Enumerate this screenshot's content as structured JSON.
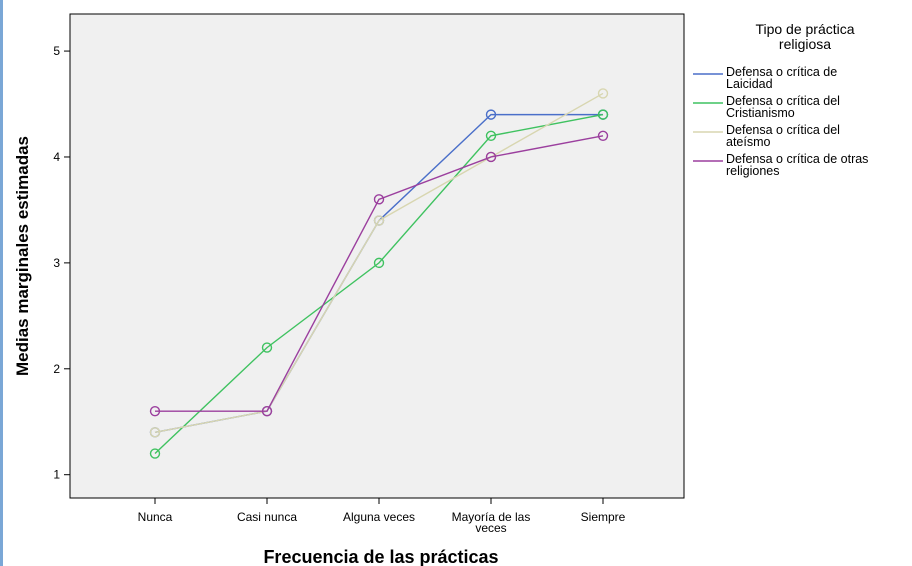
{
  "chart_data": {
    "type": "line",
    "xlabel": "Frecuencia de las prácticas",
    "ylabel": "Medias marginales estimadas",
    "categories": [
      [
        "Nunca"
      ],
      [
        "Casi nunca"
      ],
      [
        "Alguna veces"
      ],
      [
        "Mayoría de las",
        "veces"
      ],
      [
        "Siempre"
      ]
    ],
    "yticks": [
      1,
      2,
      3,
      4,
      5
    ],
    "ylim": [
      0.78,
      5.35
    ],
    "grid": false,
    "legend": {
      "title": [
        "Tipo de práctica",
        "religiosa"
      ],
      "placement": "right"
    },
    "series": [
      {
        "name": [
          "Defensa o crítica de",
          "Laicidad"
        ],
        "color": "#4a6fc9",
        "values": [
          1.4,
          1.6,
          3.4,
          4.4,
          4.4
        ]
      },
      {
        "name": [
          "Defensa o crítica del",
          "Cristianismo"
        ],
        "color": "#3fc260",
        "values": [
          1.2,
          2.2,
          3.0,
          4.2,
          4.4
        ]
      },
      {
        "name": [
          "Defensa o crítica del",
          "ateísmo"
        ],
        "color": "#d8d6b0",
        "values": [
          1.4,
          1.6,
          3.4,
          4.0,
          4.6
        ]
      },
      {
        "name": [
          "Defensa o crítica de otras",
          "religiones"
        ],
        "color": "#9b3f9e",
        "values": [
          1.6,
          1.6,
          3.6,
          4.0,
          4.2
        ]
      }
    ]
  }
}
